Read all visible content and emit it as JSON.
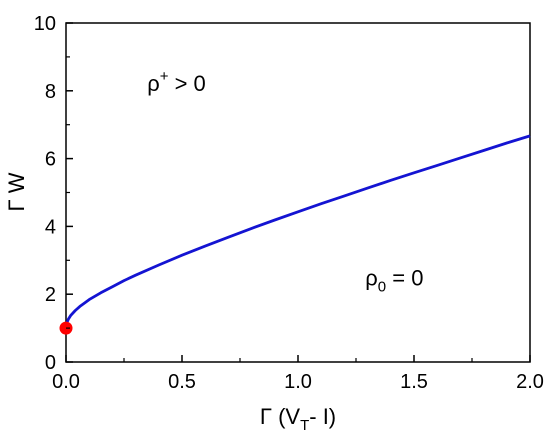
{
  "chart_data": {
    "type": "line",
    "xlabel": {
      "main": "Γ (V",
      "sub": "T",
      "rest": "- I)"
    },
    "ylabel": "Γ W",
    "xlim": [
      0.0,
      2.0
    ],
    "ylim": [
      0,
      10
    ],
    "x_ticks": [
      {
        "value": 0.0,
        "label": "0.0"
      },
      {
        "value": 0.5,
        "label": "0.5"
      },
      {
        "value": 1.0,
        "label": "1.0"
      },
      {
        "value": 1.5,
        "label": "1.5"
      },
      {
        "value": 2.0,
        "label": "2.0"
      }
    ],
    "y_ticks": [
      {
        "value": 0,
        "label": "0"
      },
      {
        "value": 2,
        "label": "2"
      },
      {
        "value": 4,
        "label": "4"
      },
      {
        "value": 6,
        "label": "6"
      },
      {
        "value": 8,
        "label": "8"
      },
      {
        "value": 10,
        "label": "10"
      }
    ],
    "grid": false,
    "legend": "none",
    "series": [
      {
        "color": "#1414d2",
        "points": [
          [
            0.0,
            1.0
          ],
          [
            0.005,
            1.18
          ],
          [
            0.01,
            1.26
          ],
          [
            0.02,
            1.37
          ],
          [
            0.04,
            1.52
          ],
          [
            0.06,
            1.64
          ],
          [
            0.08,
            1.74
          ],
          [
            0.1,
            1.84
          ],
          [
            0.15,
            2.04
          ],
          [
            0.2,
            2.22
          ],
          [
            0.25,
            2.4
          ],
          [
            0.3,
            2.56
          ],
          [
            0.4,
            2.86
          ],
          [
            0.5,
            3.15
          ],
          [
            0.6,
            3.42
          ],
          [
            0.7,
            3.68
          ],
          [
            0.8,
            3.94
          ],
          [
            0.9,
            4.19
          ],
          [
            1.0,
            4.43
          ],
          [
            1.1,
            4.67
          ],
          [
            1.2,
            4.9
          ],
          [
            1.3,
            5.13
          ],
          [
            1.4,
            5.36
          ],
          [
            1.5,
            5.58
          ],
          [
            1.6,
            5.8
          ],
          [
            1.7,
            6.02
          ],
          [
            1.8,
            6.24
          ],
          [
            1.9,
            6.46
          ],
          [
            2.0,
            6.67
          ]
        ]
      }
    ],
    "marker": {
      "x": 0.0,
      "y": 1.0,
      "color": "#ff0000"
    },
    "annotations": [
      {
        "id": "rho-plus",
        "base": "ρ",
        "sup": "+",
        "rest": " > 0",
        "x": 0.35,
        "y": 8.0
      },
      {
        "id": "rho-zero",
        "base": "ρ",
        "sub": "0",
        "rest": " = 0",
        "x": 1.29,
        "y": 2.25
      }
    ]
  }
}
